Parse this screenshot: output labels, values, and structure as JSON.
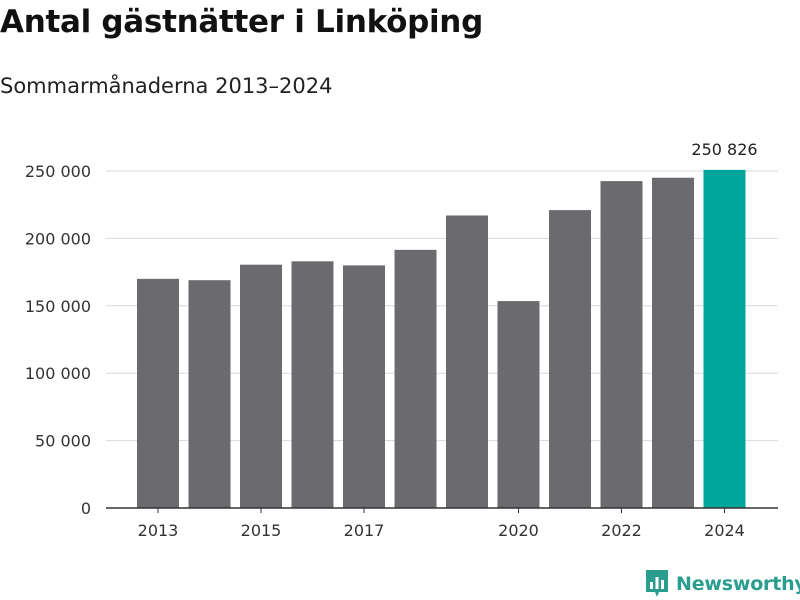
{
  "chart_data": {
    "type": "bar",
    "title": "Antal gästnätter i Linköping",
    "subtitle": "Sommarmånaderna 2013–2024",
    "xlabel": "",
    "ylabel": "",
    "categories": [
      "2013",
      "2014",
      "2015",
      "2016",
      "2017",
      "2018",
      "2019",
      "2020",
      "2021",
      "2022",
      "2023",
      "2024"
    ],
    "values": [
      170000,
      169000,
      180500,
      183000,
      180000,
      191500,
      217000,
      153500,
      221000,
      242500,
      245000,
      250826
    ],
    "x_tick_labels": [
      "2013",
      "2015",
      "2017",
      "2020",
      "2022",
      "2024"
    ],
    "ylim": [
      0,
      265000
    ],
    "y_ticks": [
      0,
      50000,
      100000,
      150000,
      200000,
      250000
    ],
    "y_tick_labels": [
      "0",
      "50 000",
      "100 000",
      "150 000",
      "200 000",
      "250 000"
    ],
    "highlight_index": 11,
    "data_labels": [
      {
        "index": 11,
        "text": "250 826"
      }
    ],
    "grid": true,
    "legend": "none",
    "colors": {
      "bar": "#6b6b6f",
      "highlight": "#00a69c",
      "grid": "#d9d9d9",
      "axis": "#333333"
    }
  },
  "branding": {
    "name": "Newsworthy",
    "logo_icon": "newsworthy-chart-icon",
    "color": "#2a9d8f"
  }
}
